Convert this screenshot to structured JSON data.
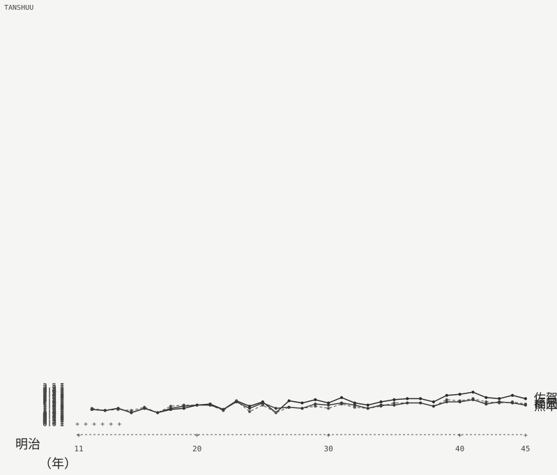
{
  "chart_data": {
    "type": "line",
    "header": "TANSHUU",
    "x_era": "明治",
    "x_unit": "（年）",
    "x_ticks": [
      11,
      20,
      30,
      40,
      45
    ],
    "ylim": [
      0.0,
      3.5
    ],
    "y_ticks": [
      "0.0",
      "0.1",
      "0.2",
      "0.3",
      "0.4",
      "0.5",
      "0.6",
      "0.7",
      "0.8",
      "0.9",
      "1.0",
      "1.1",
      "1.2",
      "1.3",
      "1.4",
      "1.5",
      "1.6",
      "1.7",
      "1.8",
      "1.9",
      "2.0",
      "2.1",
      "2.2",
      "2.3",
      "2.4",
      "2.5",
      "2.6",
      "2.7",
      "2.8",
      "2.9",
      "3.0",
      "3.1",
      "3.2",
      "3.3",
      "3.4",
      "3.5"
    ],
    "y_tick_marker": "I",
    "x": [
      12,
      13,
      14,
      15,
      16,
      17,
      18,
      19,
      20,
      21,
      22,
      23,
      24,
      25,
      26,
      27,
      28,
      29,
      30,
      31,
      32,
      33,
      34,
      35,
      36,
      37,
      38,
      39,
      40,
      41,
      42,
      43,
      44,
      45
    ],
    "series": [
      {
        "name": "佐賀",
        "line": "solid",
        "values": [
          1.3,
          1.2,
          1.4,
          1.0,
          1.4,
          1.0,
          1.3,
          1.4,
          1.7,
          1.8,
          1.3,
          2.1,
          1.6,
          2.0,
          1.0,
          2.1,
          1.9,
          2.2,
          1.9,
          2.4,
          1.9,
          1.7,
          2.0,
          2.2,
          2.3,
          2.3,
          2.0,
          2.6,
          2.7,
          2.9,
          2.4,
          2.3,
          2.6,
          2.3
        ]
      },
      {
        "name": "福岡",
        "line": "dashed",
        "values": [
          1.4,
          1.2,
          1.3,
          1.2,
          1.5,
          1.0,
          1.6,
          1.7,
          1.7,
          1.7,
          1.2,
          2.1,
          1.1,
          1.7,
          1.0,
          1.5,
          1.4,
          1.6,
          1.4,
          1.8,
          1.5,
          1.4,
          1.6,
          1.9,
          1.9,
          1.9,
          1.6,
          2.2,
          2.1,
          2.3,
          2.0,
          1.9,
          2.0,
          1.8
        ]
      },
      {
        "name": "熊本",
        "line": "solid",
        "values": [
          1.3,
          1.2,
          1.4,
          1.0,
          1.4,
          1.0,
          1.4,
          1.6,
          1.7,
          1.7,
          1.3,
          2.0,
          1.4,
          1.9,
          1.4,
          1.5,
          1.4,
          1.8,
          1.7,
          1.9,
          1.7,
          1.4,
          1.7,
          1.7,
          1.9,
          1.9,
          1.6,
          2.0,
          2.0,
          2.2,
          1.8,
          2.0,
          1.9,
          1.7
        ]
      }
    ],
    "legend_placement": "right, beside line ends",
    "baseline_markers": "+ + + + + +"
  }
}
